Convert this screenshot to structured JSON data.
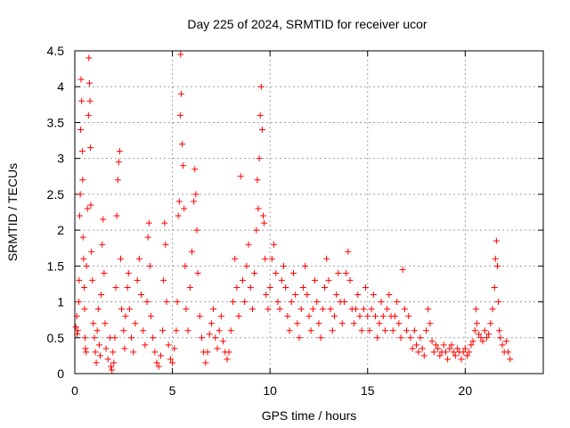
{
  "chart_data": {
    "type": "scatter",
    "title": "Day 225 of 2024, SRMTID for receiver ucor",
    "xlabel": "GPS time / hours",
    "ylabel": "SRMTID / TECUs",
    "xlim": [
      0,
      24
    ],
    "ylim": [
      0,
      4.5
    ],
    "xticks": [
      0,
      5,
      10,
      15,
      20
    ],
    "xtick_labels": [
      "0",
      "5",
      "10",
      "15",
      "20"
    ],
    "yticks": [
      0,
      0.5,
      1,
      1.5,
      2,
      2.5,
      3,
      3.5,
      4,
      4.5
    ],
    "ytick_labels": [
      "0",
      "0.5",
      "1",
      "1.5",
      "2",
      "2.5",
      "3",
      "3.5",
      "4",
      "4.5"
    ],
    "grid": true,
    "marker": "+",
    "color": "#ff0000",
    "series": [
      {
        "name": "SRMTID",
        "points": [
          [
            0.05,
            0.65
          ],
          [
            0.1,
            0.8
          ],
          [
            0.12,
            0.55
          ],
          [
            0.15,
            0.6
          ],
          [
            0.2,
            1.0
          ],
          [
            0.22,
            1.3
          ],
          [
            0.25,
            2.2
          ],
          [
            0.28,
            2.5
          ],
          [
            0.3,
            3.4
          ],
          [
            0.32,
            4.1
          ],
          [
            0.35,
            3.8
          ],
          [
            0.38,
            3.1
          ],
          [
            0.4,
            2.7
          ],
          [
            0.42,
            1.9
          ],
          [
            0.45,
            1.6
          ],
          [
            0.48,
            1.2
          ],
          [
            0.5,
            0.9
          ],
          [
            0.52,
            0.5
          ],
          [
            0.55,
            0.35
          ],
          [
            0.58,
            0.3
          ],
          [
            0.6,
            1.5
          ],
          [
            0.65,
            2.3
          ],
          [
            0.7,
            3.6
          ],
          [
            0.72,
            4.4
          ],
          [
            0.75,
            4.05
          ],
          [
            0.78,
            3.8
          ],
          [
            0.8,
            3.15
          ],
          [
            0.82,
            2.35
          ],
          [
            0.85,
            1.7
          ],
          [
            0.9,
            1.3
          ],
          [
            0.95,
            0.7
          ],
          [
            1.0,
            0.5
          ],
          [
            1.05,
            0.3
          ],
          [
            1.1,
            0.15
          ],
          [
            1.15,
            0.6
          ],
          [
            1.2,
            0.9
          ],
          [
            1.25,
            0.4
          ],
          [
            1.3,
            0.25
          ],
          [
            1.35,
            1.1
          ],
          [
            1.4,
            1.8
          ],
          [
            1.45,
            2.15
          ],
          [
            1.5,
            1.4
          ],
          [
            1.55,
            0.7
          ],
          [
            1.6,
            0.35
          ],
          [
            1.7,
            0.2
          ],
          [
            1.8,
            0.5
          ],
          [
            1.85,
            0.1
          ],
          [
            1.9,
            0.05
          ],
          [
            1.95,
            0.3
          ],
          [
            2.0,
            0.15
          ],
          [
            2.05,
            0.5
          ],
          [
            2.1,
            1.2
          ],
          [
            2.15,
            2.2
          ],
          [
            2.2,
            2.7
          ],
          [
            2.25,
            2.95
          ],
          [
            2.3,
            3.1
          ],
          [
            2.35,
            1.6
          ],
          [
            2.4,
            0.9
          ],
          [
            2.5,
            0.6
          ],
          [
            2.55,
            0.35
          ],
          [
            2.6,
            0.8
          ],
          [
            2.7,
            1.2
          ],
          [
            2.75,
            1.4
          ],
          [
            2.8,
            0.9
          ],
          [
            2.9,
            0.5
          ],
          [
            3.0,
            0.3
          ],
          [
            3.1,
            0.7
          ],
          [
            3.2,
            1.3
          ],
          [
            3.3,
            1.6
          ],
          [
            3.4,
            1.1
          ],
          [
            3.5,
            0.6
          ],
          [
            3.6,
            0.4
          ],
          [
            3.7,
            1.0
          ],
          [
            3.75,
            1.9
          ],
          [
            3.8,
            2.1
          ],
          [
            3.85,
            1.5
          ],
          [
            3.9,
            0.8
          ],
          [
            4.0,
            0.5
          ],
          [
            4.1,
            0.3
          ],
          [
            4.2,
            0.15
          ],
          [
            4.3,
            0.1
          ],
          [
            4.4,
            0.25
          ],
          [
            4.5,
            0.6
          ],
          [
            4.55,
            1.3
          ],
          [
            4.6,
            2.1
          ],
          [
            4.65,
            1.8
          ],
          [
            4.7,
            1.0
          ],
          [
            4.8,
            0.4
          ],
          [
            4.9,
            0.2
          ],
          [
            5.0,
            0.15
          ],
          [
            5.1,
            0.35
          ],
          [
            5.2,
            0.6
          ],
          [
            5.25,
            1.0
          ],
          [
            5.3,
            2.2
          ],
          [
            5.35,
            2.4
          ],
          [
            5.4,
            3.6
          ],
          [
            5.42,
            4.45
          ],
          [
            5.45,
            3.9
          ],
          [
            5.5,
            3.2
          ],
          [
            5.55,
            2.9
          ],
          [
            5.6,
            2.3
          ],
          [
            5.65,
            1.5
          ],
          [
            5.7,
            0.9
          ],
          [
            5.8,
            0.6
          ],
          [
            5.9,
            1.2
          ],
          [
            6.0,
            1.7
          ],
          [
            6.1,
            2.4
          ],
          [
            6.15,
            2.85
          ],
          [
            6.2,
            2.5
          ],
          [
            6.25,
            2.0
          ],
          [
            6.3,
            1.4
          ],
          [
            6.4,
            0.8
          ],
          [
            6.5,
            0.5
          ],
          [
            6.6,
            0.3
          ],
          [
            6.7,
            0.15
          ],
          [
            6.8,
            0.3
          ],
          [
            6.9,
            0.55
          ],
          [
            7.0,
            0.7
          ],
          [
            7.1,
            0.9
          ],
          [
            7.2,
            0.5
          ],
          [
            7.3,
            0.35
          ],
          [
            7.4,
            0.6
          ],
          [
            7.5,
            0.8
          ],
          [
            7.6,
            0.45
          ],
          [
            7.7,
            0.3
          ],
          [
            7.8,
            0.2
          ],
          [
            7.9,
            0.3
          ],
          [
            8.0,
            0.6
          ],
          [
            8.1,
            1.0
          ],
          [
            8.2,
            1.6
          ],
          [
            8.3,
            1.2
          ],
          [
            8.4,
            0.8
          ],
          [
            8.5,
            2.75
          ],
          [
            8.6,
            1.3
          ],
          [
            8.7,
            1.0
          ],
          [
            8.8,
            1.5
          ],
          [
            8.9,
            1.8
          ],
          [
            9.0,
            1.2
          ],
          [
            9.1,
            0.9
          ],
          [
            9.2,
            1.4
          ],
          [
            9.3,
            2.0
          ],
          [
            9.35,
            2.7
          ],
          [
            9.4,
            2.3
          ],
          [
            9.45,
            3.0
          ],
          [
            9.5,
            3.6
          ],
          [
            9.55,
            4.0
          ],
          [
            9.6,
            3.4
          ],
          [
            9.65,
            2.2
          ],
          [
            9.7,
            2.1
          ],
          [
            9.75,
            1.6
          ],
          [
            9.8,
            1.1
          ],
          [
            9.9,
            0.9
          ],
          [
            10.0,
            1.2
          ],
          [
            10.1,
            1.6
          ],
          [
            10.2,
            1.8
          ],
          [
            10.3,
            1.4
          ],
          [
            10.4,
            1.0
          ],
          [
            10.5,
            0.9
          ],
          [
            10.6,
            1.3
          ],
          [
            10.7,
            1.5
          ],
          [
            10.8,
            1.2
          ],
          [
            10.9,
            0.8
          ],
          [
            11.0,
            0.6
          ],
          [
            11.1,
            1.0
          ],
          [
            11.2,
            1.4
          ],
          [
            11.3,
            1.1
          ],
          [
            11.4,
            0.7
          ],
          [
            11.5,
            0.5
          ],
          [
            11.6,
            0.9
          ],
          [
            11.7,
            1.2
          ],
          [
            11.8,
            1.5
          ],
          [
            11.9,
            1.1
          ],
          [
            12.0,
            0.8
          ],
          [
            12.1,
            0.6
          ],
          [
            12.2,
            0.9
          ],
          [
            12.3,
            1.3
          ],
          [
            12.4,
            1.0
          ],
          [
            12.5,
            0.7
          ],
          [
            12.6,
            0.5
          ],
          [
            12.7,
            0.9
          ],
          [
            12.8,
            1.2
          ],
          [
            12.9,
            1.6
          ],
          [
            13.0,
            1.3
          ],
          [
            13.1,
            0.9
          ],
          [
            13.2,
            0.6
          ],
          [
            13.3,
            0.8
          ],
          [
            13.4,
            1.1
          ],
          [
            13.5,
            1.4
          ],
          [
            13.6,
            1.0
          ],
          [
            13.7,
            0.7
          ],
          [
            13.8,
            1.0
          ],
          [
            13.9,
            1.4
          ],
          [
            14.0,
            1.7
          ],
          [
            14.1,
            1.3
          ],
          [
            14.2,
            0.9
          ],
          [
            14.3,
            0.7
          ],
          [
            14.4,
            0.9
          ],
          [
            14.5,
            1.1
          ],
          [
            14.6,
            0.8
          ],
          [
            14.7,
            0.6
          ],
          [
            14.8,
            0.9
          ],
          [
            14.9,
            1.2
          ],
          [
            15.0,
            0.8
          ],
          [
            15.1,
            0.6
          ],
          [
            15.2,
            0.9
          ],
          [
            15.3,
            1.1
          ],
          [
            15.4,
            0.8
          ],
          [
            15.5,
            0.5
          ],
          [
            15.6,
            0.7
          ],
          [
            15.7,
            1.0
          ],
          [
            15.8,
            0.8
          ],
          [
            15.9,
            0.6
          ],
          [
            16.0,
            0.9
          ],
          [
            16.1,
            1.1
          ],
          [
            16.2,
            0.8
          ],
          [
            16.3,
            0.6
          ],
          [
            16.4,
            0.8
          ],
          [
            16.5,
            1.0
          ],
          [
            16.6,
            0.7
          ],
          [
            16.7,
            0.5
          ],
          [
            16.8,
            1.45
          ],
          [
            16.9,
            0.9
          ],
          [
            17.0,
            0.6
          ],
          [
            17.1,
            0.8
          ],
          [
            17.2,
            0.5
          ],
          [
            17.3,
            0.35
          ],
          [
            17.4,
            0.6
          ],
          [
            17.5,
            0.4
          ],
          [
            17.6,
            0.3
          ],
          [
            17.7,
            0.5
          ],
          [
            17.8,
            0.35
          ],
          [
            17.9,
            0.25
          ],
          [
            18.0,
            0.6
          ],
          [
            18.1,
            0.9
          ],
          [
            18.2,
            0.7
          ],
          [
            18.3,
            0.45
          ],
          [
            18.4,
            0.3
          ],
          [
            18.5,
            0.4
          ],
          [
            18.6,
            0.35
          ],
          [
            18.7,
            0.25
          ],
          [
            18.8,
            0.3
          ],
          [
            18.9,
            0.4
          ],
          [
            19.0,
            0.3
          ],
          [
            19.1,
            0.2
          ],
          [
            19.2,
            0.35
          ],
          [
            19.3,
            0.4
          ],
          [
            19.4,
            0.3
          ],
          [
            19.5,
            0.25
          ],
          [
            19.6,
            0.35
          ],
          [
            19.7,
            0.3
          ],
          [
            19.8,
            0.2
          ],
          [
            19.9,
            0.3
          ],
          [
            20.0,
            0.35
          ],
          [
            20.1,
            0.25
          ],
          [
            20.2,
            0.3
          ],
          [
            20.3,
            0.4
          ],
          [
            20.4,
            0.45
          ],
          [
            20.5,
            0.6
          ],
          [
            20.55,
            0.9
          ],
          [
            20.6,
            0.7
          ],
          [
            20.7,
            0.55
          ],
          [
            20.8,
            0.5
          ],
          [
            20.9,
            0.45
          ],
          [
            21.0,
            0.6
          ],
          [
            21.1,
            0.5
          ],
          [
            21.2,
            0.55
          ],
          [
            21.3,
            0.7
          ],
          [
            21.4,
            0.9
          ],
          [
            21.5,
            1.2
          ],
          [
            21.55,
            1.6
          ],
          [
            21.6,
            1.85
          ],
          [
            21.65,
            1.5
          ],
          [
            21.7,
            1.0
          ],
          [
            21.75,
            0.6
          ],
          [
            21.8,
            0.5
          ],
          [
            21.9,
            0.4
          ],
          [
            22.0,
            0.3
          ],
          [
            22.1,
            0.45
          ],
          [
            22.2,
            0.3
          ],
          [
            22.3,
            0.2
          ]
        ]
      }
    ]
  }
}
